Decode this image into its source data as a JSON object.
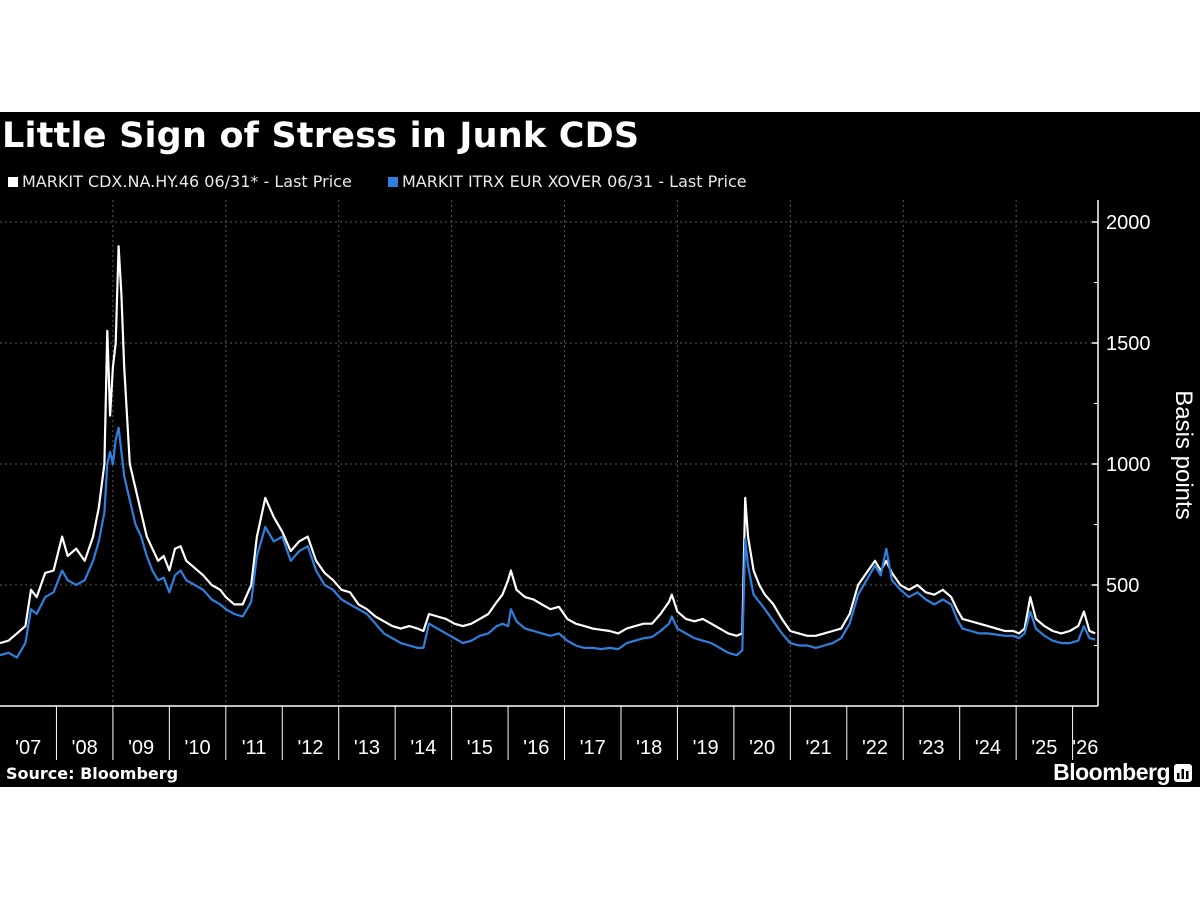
{
  "title": "Little Sign of Stress in Junk CDS",
  "source": "Source: Bloomberg",
  "brand": "Bloomberg",
  "colors": {
    "background": "#000000",
    "series1": "#ffffff",
    "series2": "#2f80de",
    "grid": "#5a5a5a",
    "text": "#ffffff"
  },
  "chart_data": {
    "type": "line",
    "ylabel": "Basis points",
    "ylim": [
      0,
      2000
    ],
    "yticks": [
      500,
      1000,
      1500,
      2000
    ],
    "xlim": [
      2007.0,
      2026.45
    ],
    "xtick_labels": [
      "'07",
      "'08",
      "'09",
      "'10",
      "'11",
      "'12",
      "'13",
      "'14",
      "'15",
      "'16",
      "'17",
      "'18",
      "'19",
      "'20",
      "'21",
      "'22",
      "'23",
      "'24",
      "'25",
      "'26"
    ],
    "legend_position": "top-left",
    "grid": true,
    "series": [
      {
        "name": "MARKIT CDX.NA.HY.46 06/31* - Last Price",
        "color": "#ffffff",
        "points": [
          [
            2007.0,
            260
          ],
          [
            2007.15,
            270
          ],
          [
            2007.3,
            300
          ],
          [
            2007.45,
            330
          ],
          [
            2007.55,
            480
          ],
          [
            2007.65,
            450
          ],
          [
            2007.8,
            550
          ],
          [
            2007.95,
            560
          ],
          [
            2008.1,
            700
          ],
          [
            2008.2,
            620
          ],
          [
            2008.35,
            650
          ],
          [
            2008.5,
            600
          ],
          [
            2008.65,
            700
          ],
          [
            2008.75,
            820
          ],
          [
            2008.85,
            1000
          ],
          [
            2008.9,
            1550
          ],
          [
            2008.95,
            1200
          ],
          [
            2009.0,
            1400
          ],
          [
            2009.05,
            1500
          ],
          [
            2009.1,
            1900
          ],
          [
            2009.15,
            1700
          ],
          [
            2009.2,
            1400
          ],
          [
            2009.3,
            1000
          ],
          [
            2009.4,
            900
          ],
          [
            2009.5,
            800
          ],
          [
            2009.6,
            700
          ],
          [
            2009.7,
            650
          ],
          [
            2009.8,
            600
          ],
          [
            2009.9,
            620
          ],
          [
            2010.0,
            560
          ],
          [
            2010.1,
            650
          ],
          [
            2010.2,
            660
          ],
          [
            2010.3,
            600
          ],
          [
            2010.45,
            570
          ],
          [
            2010.6,
            540
          ],
          [
            2010.75,
            500
          ],
          [
            2010.9,
            480
          ],
          [
            2011.0,
            450
          ],
          [
            2011.15,
            420
          ],
          [
            2011.3,
            420
          ],
          [
            2011.45,
            500
          ],
          [
            2011.55,
            700
          ],
          [
            2011.7,
            860
          ],
          [
            2011.85,
            780
          ],
          [
            2012.0,
            720
          ],
          [
            2012.15,
            640
          ],
          [
            2012.3,
            680
          ],
          [
            2012.45,
            700
          ],
          [
            2012.6,
            600
          ],
          [
            2012.75,
            550
          ],
          [
            2012.9,
            520
          ],
          [
            2013.05,
            480
          ],
          [
            2013.2,
            470
          ],
          [
            2013.35,
            420
          ],
          [
            2013.5,
            400
          ],
          [
            2013.65,
            370
          ],
          [
            2013.8,
            350
          ],
          [
            2013.95,
            330
          ],
          [
            2014.1,
            320
          ],
          [
            2014.25,
            330
          ],
          [
            2014.4,
            320
          ],
          [
            2014.5,
            310
          ],
          [
            2014.6,
            380
          ],
          [
            2014.75,
            370
          ],
          [
            2014.9,
            360
          ],
          [
            2015.05,
            340
          ],
          [
            2015.2,
            330
          ],
          [
            2015.35,
            340
          ],
          [
            2015.5,
            360
          ],
          [
            2015.65,
            380
          ],
          [
            2015.8,
            430
          ],
          [
            2015.9,
            460
          ],
          [
            2016.0,
            520
          ],
          [
            2016.05,
            560
          ],
          [
            2016.15,
            480
          ],
          [
            2016.3,
            450
          ],
          [
            2016.45,
            440
          ],
          [
            2016.6,
            420
          ],
          [
            2016.75,
            400
          ],
          [
            2016.9,
            410
          ],
          [
            2017.05,
            360
          ],
          [
            2017.2,
            340
          ],
          [
            2017.35,
            330
          ],
          [
            2017.5,
            320
          ],
          [
            2017.65,
            315
          ],
          [
            2017.8,
            310
          ],
          [
            2017.95,
            300
          ],
          [
            2018.1,
            320
          ],
          [
            2018.25,
            330
          ],
          [
            2018.4,
            340
          ],
          [
            2018.55,
            340
          ],
          [
            2018.7,
            380
          ],
          [
            2018.85,
            430
          ],
          [
            2018.9,
            460
          ],
          [
            2019.0,
            390
          ],
          [
            2019.15,
            360
          ],
          [
            2019.3,
            350
          ],
          [
            2019.45,
            360
          ],
          [
            2019.6,
            340
          ],
          [
            2019.75,
            320
          ],
          [
            2019.9,
            300
          ],
          [
            2020.05,
            290
          ],
          [
            2020.15,
            300
          ],
          [
            2020.2,
            860
          ],
          [
            2020.25,
            700
          ],
          [
            2020.35,
            560
          ],
          [
            2020.45,
            500
          ],
          [
            2020.55,
            460
          ],
          [
            2020.7,
            420
          ],
          [
            2020.85,
            360
          ],
          [
            2021.0,
            310
          ],
          [
            2021.15,
            300
          ],
          [
            2021.3,
            290
          ],
          [
            2021.45,
            290
          ],
          [
            2021.6,
            300
          ],
          [
            2021.75,
            310
          ],
          [
            2021.9,
            320
          ],
          [
            2022.05,
            380
          ],
          [
            2022.2,
            500
          ],
          [
            2022.35,
            550
          ],
          [
            2022.5,
            600
          ],
          [
            2022.6,
            560
          ],
          [
            2022.7,
            600
          ],
          [
            2022.8,
            550
          ],
          [
            2022.95,
            500
          ],
          [
            2023.1,
            480
          ],
          [
            2023.25,
            500
          ],
          [
            2023.4,
            470
          ],
          [
            2023.55,
            460
          ],
          [
            2023.7,
            480
          ],
          [
            2023.85,
            450
          ],
          [
            2023.95,
            400
          ],
          [
            2024.05,
            360
          ],
          [
            2024.2,
            350
          ],
          [
            2024.35,
            340
          ],
          [
            2024.5,
            330
          ],
          [
            2024.65,
            320
          ],
          [
            2024.8,
            310
          ],
          [
            2024.95,
            310
          ],
          [
            2025.05,
            300
          ],
          [
            2025.15,
            320
          ],
          [
            2025.25,
            450
          ],
          [
            2025.35,
            360
          ],
          [
            2025.5,
            330
          ],
          [
            2025.65,
            310
          ],
          [
            2025.8,
            300
          ],
          [
            2025.95,
            310
          ],
          [
            2026.1,
            330
          ],
          [
            2026.2,
            390
          ],
          [
            2026.3,
            310
          ],
          [
            2026.4,
            300
          ]
        ]
      },
      {
        "name": "MARKIT ITRX EUR XOVER 06/31 - Last Price",
        "color": "#2f80de",
        "points": [
          [
            2007.0,
            210
          ],
          [
            2007.15,
            220
          ],
          [
            2007.3,
            200
          ],
          [
            2007.45,
            260
          ],
          [
            2007.55,
            400
          ],
          [
            2007.65,
            380
          ],
          [
            2007.8,
            450
          ],
          [
            2007.95,
            470
          ],
          [
            2008.1,
            560
          ],
          [
            2008.2,
            520
          ],
          [
            2008.35,
            500
          ],
          [
            2008.5,
            520
          ],
          [
            2008.65,
            600
          ],
          [
            2008.75,
            680
          ],
          [
            2008.85,
            800
          ],
          [
            2008.9,
            1000
          ],
          [
            2008.95,
            1050
          ],
          [
            2009.0,
            1000
          ],
          [
            2009.05,
            1100
          ],
          [
            2009.1,
            1150
          ],
          [
            2009.15,
            1050
          ],
          [
            2009.2,
            950
          ],
          [
            2009.3,
            850
          ],
          [
            2009.4,
            750
          ],
          [
            2009.5,
            700
          ],
          [
            2009.6,
            620
          ],
          [
            2009.7,
            560
          ],
          [
            2009.8,
            520
          ],
          [
            2009.9,
            530
          ],
          [
            2010.0,
            470
          ],
          [
            2010.1,
            540
          ],
          [
            2010.2,
            560
          ],
          [
            2010.3,
            520
          ],
          [
            2010.45,
            500
          ],
          [
            2010.6,
            480
          ],
          [
            2010.75,
            440
          ],
          [
            2010.9,
            420
          ],
          [
            2011.0,
            400
          ],
          [
            2011.15,
            380
          ],
          [
            2011.3,
            370
          ],
          [
            2011.45,
            430
          ],
          [
            2011.55,
            620
          ],
          [
            2011.7,
            740
          ],
          [
            2011.85,
            680
          ],
          [
            2012.0,
            700
          ],
          [
            2012.15,
            600
          ],
          [
            2012.3,
            640
          ],
          [
            2012.45,
            660
          ],
          [
            2012.6,
            560
          ],
          [
            2012.75,
            500
          ],
          [
            2012.9,
            480
          ],
          [
            2013.05,
            440
          ],
          [
            2013.2,
            420
          ],
          [
            2013.35,
            400
          ],
          [
            2013.5,
            380
          ],
          [
            2013.65,
            340
          ],
          [
            2013.8,
            300
          ],
          [
            2013.95,
            280
          ],
          [
            2014.1,
            260
          ],
          [
            2014.25,
            250
          ],
          [
            2014.4,
            240
          ],
          [
            2014.5,
            240
          ],
          [
            2014.6,
            340
          ],
          [
            2014.75,
            320
          ],
          [
            2014.9,
            300
          ],
          [
            2015.05,
            280
          ],
          [
            2015.2,
            260
          ],
          [
            2015.35,
            270
          ],
          [
            2015.5,
            290
          ],
          [
            2015.65,
            300
          ],
          [
            2015.8,
            330
          ],
          [
            2015.9,
            340
          ],
          [
            2016.0,
            330
          ],
          [
            2016.05,
            400
          ],
          [
            2016.15,
            350
          ],
          [
            2016.3,
            320
          ],
          [
            2016.45,
            310
          ],
          [
            2016.6,
            300
          ],
          [
            2016.75,
            290
          ],
          [
            2016.9,
            300
          ],
          [
            2017.05,
            270
          ],
          [
            2017.2,
            250
          ],
          [
            2017.35,
            240
          ],
          [
            2017.5,
            240
          ],
          [
            2017.65,
            235
          ],
          [
            2017.8,
            240
          ],
          [
            2017.95,
            235
          ],
          [
            2018.1,
            260
          ],
          [
            2018.25,
            270
          ],
          [
            2018.4,
            280
          ],
          [
            2018.55,
            285
          ],
          [
            2018.7,
            310
          ],
          [
            2018.85,
            340
          ],
          [
            2018.9,
            370
          ],
          [
            2019.0,
            320
          ],
          [
            2019.15,
            300
          ],
          [
            2019.3,
            280
          ],
          [
            2019.45,
            270
          ],
          [
            2019.6,
            260
          ],
          [
            2019.75,
            240
          ],
          [
            2019.9,
            220
          ],
          [
            2020.05,
            210
          ],
          [
            2020.15,
            230
          ],
          [
            2020.2,
            690
          ],
          [
            2020.25,
            580
          ],
          [
            2020.35,
            460
          ],
          [
            2020.45,
            430
          ],
          [
            2020.55,
            400
          ],
          [
            2020.7,
            350
          ],
          [
            2020.85,
            300
          ],
          [
            2021.0,
            260
          ],
          [
            2021.15,
            250
          ],
          [
            2021.3,
            250
          ],
          [
            2021.45,
            240
          ],
          [
            2021.6,
            250
          ],
          [
            2021.75,
            260
          ],
          [
            2021.9,
            280
          ],
          [
            2022.05,
            340
          ],
          [
            2022.2,
            460
          ],
          [
            2022.35,
            520
          ],
          [
            2022.5,
            580
          ],
          [
            2022.6,
            540
          ],
          [
            2022.7,
            650
          ],
          [
            2022.8,
            520
          ],
          [
            2022.95,
            480
          ],
          [
            2023.1,
            450
          ],
          [
            2023.25,
            470
          ],
          [
            2023.4,
            440
          ],
          [
            2023.55,
            420
          ],
          [
            2023.7,
            440
          ],
          [
            2023.85,
            420
          ],
          [
            2023.95,
            360
          ],
          [
            2024.05,
            320
          ],
          [
            2024.2,
            310
          ],
          [
            2024.35,
            300
          ],
          [
            2024.5,
            300
          ],
          [
            2024.65,
            295
          ],
          [
            2024.8,
            290
          ],
          [
            2024.95,
            290
          ],
          [
            2025.05,
            280
          ],
          [
            2025.15,
            300
          ],
          [
            2025.25,
            390
          ],
          [
            2025.35,
            320
          ],
          [
            2025.5,
            290
          ],
          [
            2025.65,
            270
          ],
          [
            2025.8,
            260
          ],
          [
            2025.95,
            260
          ],
          [
            2026.1,
            270
          ],
          [
            2026.2,
            330
          ],
          [
            2026.3,
            280
          ],
          [
            2026.4,
            275
          ]
        ]
      }
    ]
  }
}
